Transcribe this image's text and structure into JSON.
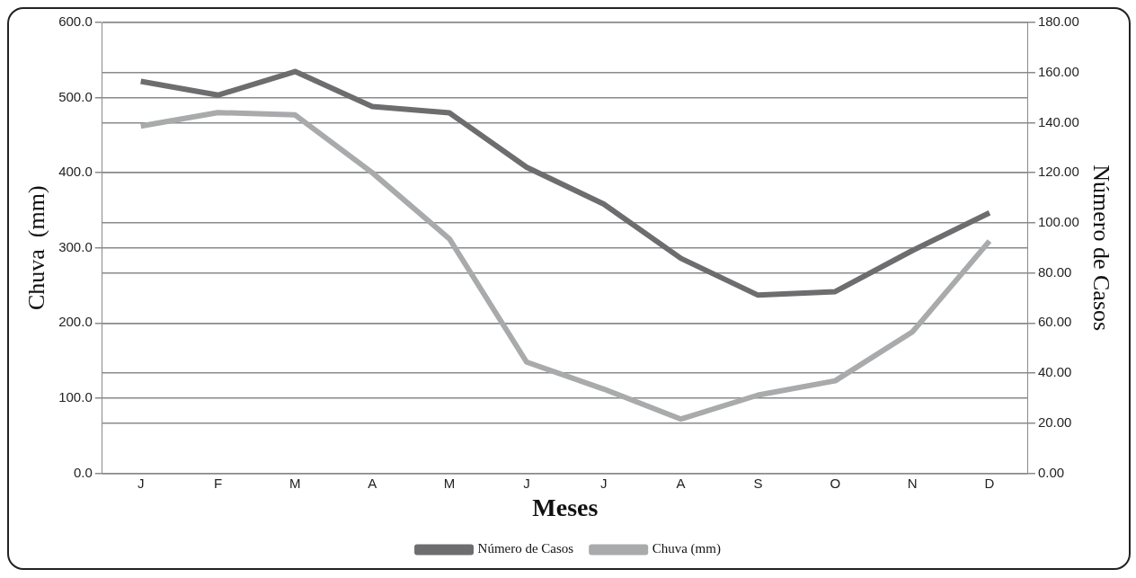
{
  "chart_data": {
    "type": "line",
    "xlabel": "Meses",
    "ylabel": "Chuva  (mm)",
    "y2label": "Número de Casos",
    "categories": [
      "J",
      "F",
      "M",
      "A",
      "M",
      "J",
      "J",
      "A",
      "S",
      "O",
      "N",
      "D"
    ],
    "series": [
      {
        "name": "Número de Casos",
        "color": "#6d6d6f",
        "axis": "y2",
        "values": [
          156.5,
          151,
          160.4,
          146.4,
          143.9,
          122.2,
          107.5,
          85.8,
          71.1,
          72.5,
          88.9,
          104
        ]
      },
      {
        "name": "Chuva (mm)",
        "color": "#a9aaab",
        "axis": "y",
        "values": [
          462,
          480,
          477,
          400,
          312,
          148,
          112,
          72,
          104,
          123,
          188,
          309
        ]
      }
    ],
    "ylim": [
      0,
      600
    ],
    "yticks": [
      {
        "value": 0,
        "label": "0.0"
      },
      {
        "value": 100,
        "label": "100.0"
      },
      {
        "value": 200,
        "label": "200.0"
      },
      {
        "value": 300,
        "label": "300.0"
      },
      {
        "value": 400,
        "label": "400.0"
      },
      {
        "value": 500,
        "label": "500.0"
      },
      {
        "value": 600,
        "label": "600.0"
      }
    ],
    "y2lim": [
      0,
      180
    ],
    "y2ticks": [
      {
        "value": 0,
        "label": "0.00"
      },
      {
        "value": 20,
        "label": "20.00"
      },
      {
        "value": 40,
        "label": "40.00"
      },
      {
        "value": 60,
        "label": "60.00"
      },
      {
        "value": 80,
        "label": "80.00"
      },
      {
        "value": 100,
        "label": "100.00"
      },
      {
        "value": 120,
        "label": "120.00"
      },
      {
        "value": 140,
        "label": "140.00"
      },
      {
        "value": 160,
        "label": "160.00"
      },
      {
        "value": 180,
        "label": "180.00"
      }
    ],
    "grid": "y",
    "legend": "bottom",
    "marker": "none",
    "line_style": "solid"
  }
}
